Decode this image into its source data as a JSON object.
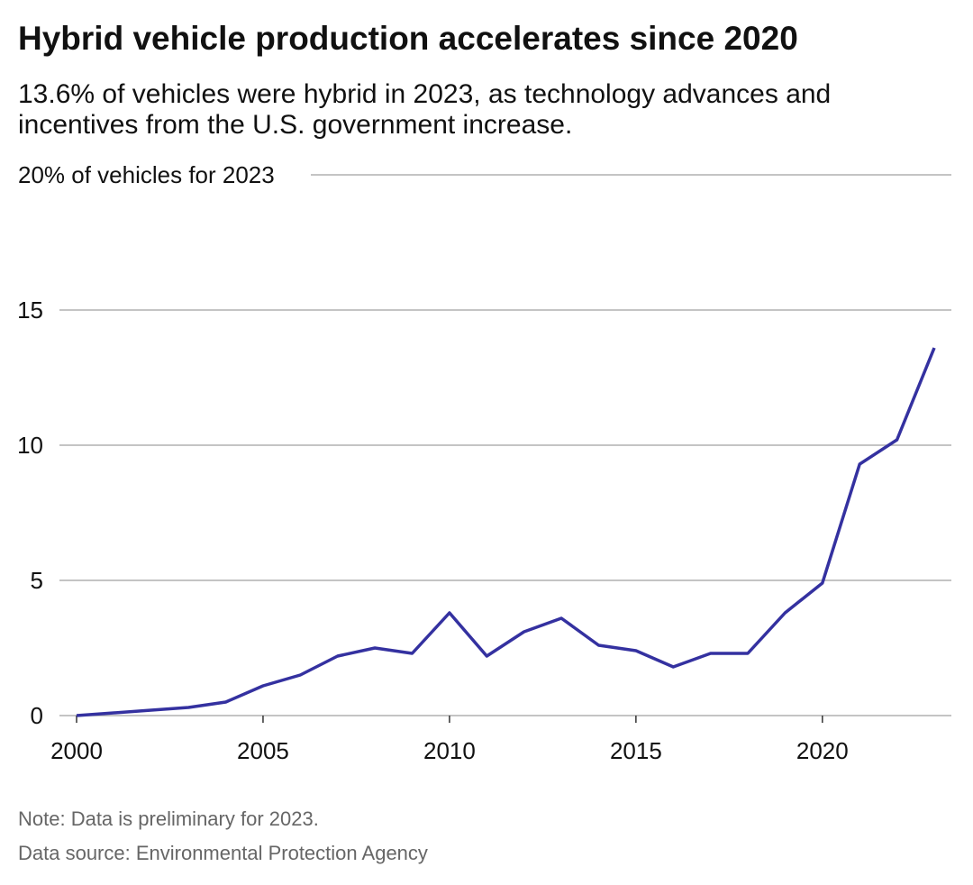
{
  "title": "Hybrid vehicle production accelerates since 2020",
  "subtitle": "13.6% of vehicles were hybrid in 2023, as technology advances and incentives from the U.S. government increase.",
  "note": "Note: Data is preliminary for 2023.",
  "source": "Data source: Environmental Protection Agency",
  "chart_data": {
    "type": "line",
    "title": "Hybrid vehicle production accelerates since 2020",
    "ylabel": "",
    "xlabel": "",
    "top_tick_label": "20% of vehicles for 2023",
    "x": [
      2000,
      2001,
      2002,
      2003,
      2004,
      2005,
      2006,
      2007,
      2008,
      2009,
      2010,
      2011,
      2012,
      2013,
      2014,
      2015,
      2016,
      2017,
      2018,
      2019,
      2020,
      2021,
      2022,
      2023
    ],
    "series": [
      {
        "values": [
          0,
          0.1,
          0.2,
          0.3,
          0.5,
          1.1,
          1.5,
          2.2,
          2.5,
          2.3,
          3.8,
          2.2,
          3.1,
          3.6,
          2.6,
          2.4,
          1.8,
          2.3,
          2.3,
          3.8,
          4.9,
          9.3,
          10.2,
          13.6
        ],
        "color": "#3431a0"
      }
    ],
    "xlim": [
      2000,
      2023
    ],
    "ylim": [
      0,
      20
    ],
    "yticks": [
      0,
      5,
      10,
      15,
      20
    ],
    "ytick_labels": [
      "0",
      "5",
      "10",
      "15",
      "20% of vehicles for 2023"
    ],
    "xticks": [
      2000,
      2005,
      2010,
      2015,
      2020
    ],
    "xtick_labels": [
      "2000",
      "2005",
      "2010",
      "2015",
      "2020"
    ],
    "grid": true
  }
}
